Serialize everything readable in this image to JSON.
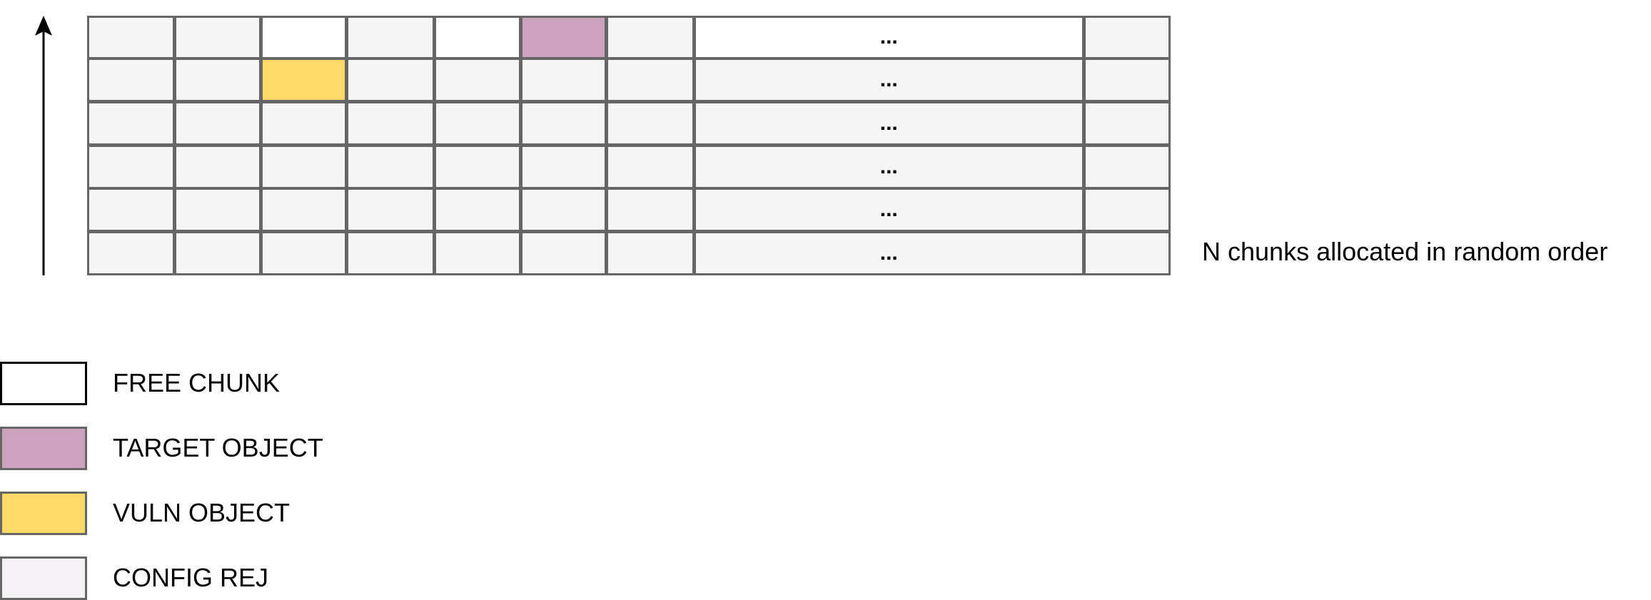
{
  "colors": {
    "free": "#ffffff",
    "target": "#cda2be",
    "vuln": "#ffd966",
    "config_rej": "#f5f5f5",
    "config_rej_legend": "#f4f2f5",
    "border": "#666666",
    "free_legend_border": "#000000"
  },
  "grid": {
    "ellipsis": "...",
    "rows": [
      [
        "config_rej",
        "config_rej",
        "free",
        "config_rej",
        "free",
        "target",
        "config_rej",
        "free",
        "config_rej"
      ],
      [
        "config_rej",
        "config_rej",
        "vuln",
        "config_rej",
        "config_rej",
        "config_rej",
        "config_rej",
        "config_rej",
        "config_rej"
      ],
      [
        "config_rej",
        "config_rej",
        "config_rej",
        "config_rej",
        "config_rej",
        "config_rej",
        "config_rej",
        "config_rej",
        "config_rej"
      ],
      [
        "config_rej",
        "config_rej",
        "config_rej",
        "config_rej",
        "config_rej",
        "config_rej",
        "config_rej",
        "config_rej",
        "config_rej"
      ],
      [
        "config_rej",
        "config_rej",
        "config_rej",
        "config_rej",
        "config_rej",
        "config_rej",
        "config_rej",
        "config_rej",
        "config_rej"
      ],
      [
        "config_rej",
        "config_rej",
        "config_rej",
        "config_rej",
        "config_rej",
        "config_rej",
        "config_rej",
        "config_rej",
        "config_rej"
      ]
    ]
  },
  "note": "N chunks allocated in random order",
  "legend": [
    {
      "label": "FREE CHUNK",
      "kind": "free"
    },
    {
      "label": "TARGET OBJECT",
      "kind": "target"
    },
    {
      "label": "VULN OBJECT",
      "kind": "vuln"
    },
    {
      "label": "CONFIG REJ",
      "kind": "config_rej_legend"
    }
  ]
}
